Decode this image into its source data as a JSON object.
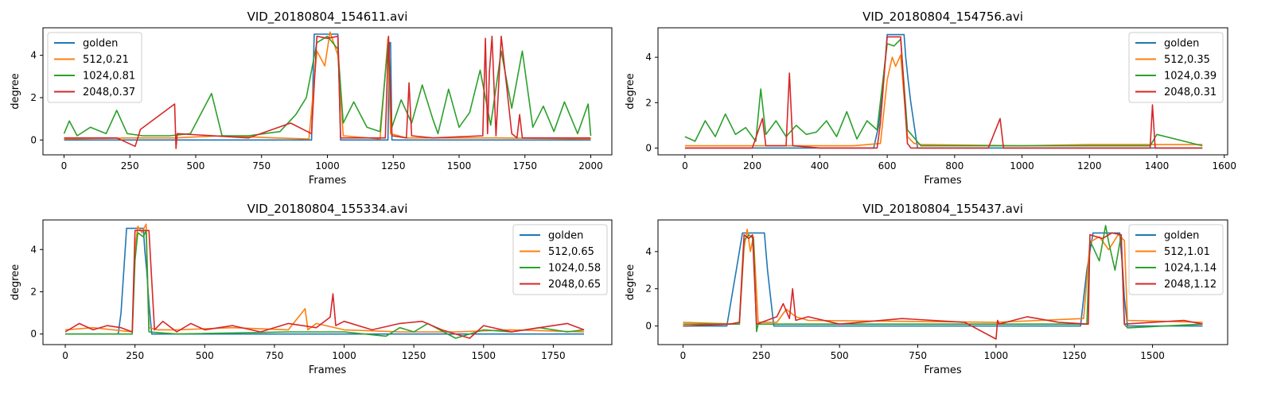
{
  "figure": {
    "colors": {
      "golden": "#1f77b4",
      "512": "#ff7f0e",
      "1024": "#2ca02c",
      "2048": "#d62728"
    }
  },
  "chart_data": [
    {
      "type": "line",
      "title": "VID_20180804_154611.avi",
      "xlabel": "Frames",
      "ylabel": "degree",
      "xlim": [
        -80,
        2080
      ],
      "ylim": [
        -0.7,
        5.3
      ],
      "xticks": [
        0,
        250,
        500,
        750,
        1000,
        1250,
        1500,
        1750,
        2000
      ],
      "yticks": [
        0,
        2,
        4
      ],
      "legend_position": "top-left",
      "series": [
        {
          "name": "golden",
          "color": "#1f77b4",
          "x": [
            0,
            940,
            950,
            1040,
            1050,
            1230,
            1235,
            1240,
            1245,
            2000
          ],
          "y": [
            0,
            0,
            5,
            5,
            0,
            0,
            4.6,
            4.6,
            0,
            0
          ]
        },
        {
          "name": "512,0.21",
          "color": "#ff7f0e",
          "x": [
            0,
            250,
            420,
            600,
            800,
            930,
            960,
            990,
            1010,
            1040,
            1060,
            1200,
            1230,
            1240,
            1300,
            1600,
            1650,
            2000
          ],
          "y": [
            0.05,
            0.1,
            0.1,
            0.2,
            0.1,
            0.05,
            4.2,
            3.5,
            5.1,
            4.0,
            0.2,
            0.05,
            4.8,
            0.3,
            0.1,
            0.1,
            0.1,
            0.05
          ]
        },
        {
          "name": "1024,0.81",
          "color": "#2ca02c",
          "x": [
            0,
            20,
            50,
            100,
            160,
            200,
            240,
            300,
            400,
            480,
            560,
            600,
            700,
            820,
            880,
            920,
            960,
            1000,
            1040,
            1060,
            1100,
            1150,
            1200,
            1230,
            1245,
            1280,
            1320,
            1360,
            1400,
            1420,
            1460,
            1500,
            1540,
            1580,
            1620,
            1660,
            1700,
            1740,
            1780,
            1820,
            1860,
            1900,
            1950,
            1990,
            2000
          ],
          "y": [
            0.3,
            0.9,
            0.2,
            0.6,
            0.3,
            1.4,
            0.3,
            0.2,
            0.2,
            0.3,
            2.2,
            0.2,
            0.2,
            0.4,
            1.2,
            2.0,
            4.6,
            4.9,
            4.3,
            0.8,
            1.8,
            0.6,
            0.4,
            4.5,
            0.6,
            1.9,
            0.8,
            2.6,
            1.0,
            0.3,
            2.4,
            0.6,
            1.3,
            3.3,
            0.7,
            4.2,
            1.5,
            4.2,
            0.6,
            1.6,
            0.4,
            1.8,
            0.3,
            1.7,
            0.2
          ]
        },
        {
          "name": "2048,0.37",
          "color": "#d62728",
          "x": [
            0,
            200,
            270,
            290,
            420,
            425,
            430,
            700,
            860,
            940,
            960,
            1000,
            1040,
            1050,
            1220,
            1232,
            1245,
            1300,
            1310,
            1320,
            1400,
            1590,
            1600,
            1608,
            1615,
            1625,
            1640,
            1660,
            1700,
            1720,
            1730,
            1740,
            2000
          ],
          "y": [
            0.1,
            0.1,
            -0.3,
            0.5,
            1.7,
            -0.4,
            0.3,
            0.1,
            0.8,
            0.3,
            4.9,
            4.8,
            4.9,
            0.1,
            0.1,
            4.9,
            0.2,
            0.1,
            2.7,
            0.2,
            0.1,
            0.2,
            4.8,
            0.3,
            3.2,
            4.9,
            0.2,
            4.9,
            0.3,
            0.1,
            1.2,
            0.1,
            0.1
          ]
        }
      ]
    },
    {
      "type": "line",
      "title": "VID_20180804_154756.avi",
      "xlabel": "Frames",
      "ylabel": "degree",
      "xlim": [
        -80,
        1610
      ],
      "ylim": [
        -0.3,
        5.3
      ],
      "xticks": [
        0,
        200,
        400,
        600,
        800,
        1000,
        1200,
        1400,
        1600
      ],
      "yticks": [
        0,
        2,
        4
      ],
      "legend_position": "top-right",
      "series": [
        {
          "name": "golden",
          "color": "#1f77b4",
          "x": [
            0,
            560,
            575,
            585,
            595,
            600,
            650,
            655,
            662,
            670,
            680,
            690,
            1535
          ],
          "y": [
            0,
            0,
            1,
            2.5,
            4,
            5,
            5,
            4,
            3,
            2,
            1,
            0,
            0
          ]
        },
        {
          "name": "512,0.35",
          "color": "#ff7f0e",
          "x": [
            0,
            500,
            580,
            600,
            615,
            625,
            640,
            660,
            680,
            700,
            1000,
            1200,
            1535
          ],
          "y": [
            0.1,
            0.1,
            0.2,
            3.0,
            4.0,
            3.6,
            4.1,
            0.5,
            0.2,
            0.15,
            0.1,
            0.15,
            0.15
          ]
        },
        {
          "name": "1024,0.39",
          "color": "#2ca02c",
          "x": [
            0,
            30,
            60,
            90,
            120,
            150,
            180,
            210,
            225,
            240,
            270,
            300,
            330,
            360,
            390,
            420,
            450,
            480,
            510,
            540,
            570,
            600,
            620,
            640,
            660,
            700,
            1000,
            1380,
            1400,
            1535
          ],
          "y": [
            0.5,
            0.3,
            1.2,
            0.5,
            1.5,
            0.6,
            0.9,
            0.3,
            2.6,
            0.6,
            1.2,
            0.5,
            1.0,
            0.6,
            0.7,
            1.2,
            0.5,
            1.6,
            0.4,
            1.2,
            0.8,
            4.6,
            4.5,
            4.8,
            0.8,
            0.1,
            0.1,
            0.1,
            0.6,
            0.1
          ]
        },
        {
          "name": "2048,0.31",
          "color": "#d62728",
          "x": [
            0,
            100,
            200,
            230,
            240,
            300,
            310,
            320,
            400,
            570,
            580,
            600,
            640,
            660,
            670,
            900,
            935,
            945,
            1000,
            1380,
            1387,
            1395,
            1535
          ],
          "y": [
            0,
            0,
            0,
            1.3,
            0.1,
            0.1,
            3.3,
            0.1,
            0,
            0,
            1.1,
            4.9,
            4.9,
            0.2,
            0,
            0,
            1.3,
            0,
            0,
            0,
            1.9,
            0,
            0
          ]
        }
      ]
    },
    {
      "type": "line",
      "title": "VID_20180804_155334.avi",
      "xlabel": "Frames",
      "ylabel": "degree",
      "xlim": [
        -80,
        1960
      ],
      "ylim": [
        -0.5,
        5.4
      ],
      "xticks": [
        0,
        250,
        500,
        750,
        1000,
        1250,
        1500,
        1750
      ],
      "yticks": [
        0,
        2,
        4
      ],
      "legend_position": "top-right",
      "series": [
        {
          "name": "golden",
          "color": "#1f77b4",
          "x": [
            0,
            190,
            200,
            210,
            220,
            280,
            285,
            292,
            300,
            310,
            1860
          ],
          "y": [
            0,
            0,
            1,
            3,
            5,
            5,
            4,
            3,
            1.5,
            0,
            0
          ]
        },
        {
          "name": "512,0.65",
          "color": "#ff7f0e",
          "x": [
            0,
            100,
            240,
            250,
            260,
            275,
            290,
            300,
            330,
            400,
            600,
            800,
            860,
            870,
            900,
            1000,
            1200,
            1400,
            1600,
            1860
          ],
          "y": [
            0.2,
            0.3,
            0.1,
            4.0,
            5.1,
            4.8,
            5.2,
            0.3,
            0.2,
            0.2,
            0.3,
            0.2,
            1.2,
            0.2,
            0.5,
            0.2,
            0.1,
            0.1,
            0.2,
            0.1
          ]
        },
        {
          "name": "1024,0.58",
          "color": "#2ca02c",
          "x": [
            0,
            240,
            250,
            260,
            280,
            290,
            300,
            400,
            800,
            1000,
            1150,
            1200,
            1250,
            1300,
            1400,
            1500,
            1600,
            1700,
            1800,
            1860
          ],
          "y": [
            0,
            0,
            3.5,
            4.8,
            4.6,
            4.9,
            0.1,
            0,
            0.1,
            0.1,
            -0.1,
            0.3,
            0.1,
            0.5,
            -0.2,
            0.2,
            0.1,
            0.3,
            0.1,
            0.2
          ]
        },
        {
          "name": "2048,0.65",
          "color": "#d62728",
          "x": [
            0,
            50,
            100,
            150,
            200,
            240,
            250,
            300,
            320,
            350,
            400,
            450,
            500,
            600,
            700,
            800,
            900,
            950,
            960,
            970,
            1000,
            1100,
            1200,
            1280,
            1350,
            1450,
            1500,
            1600,
            1700,
            1800,
            1860
          ],
          "y": [
            0.1,
            0.5,
            0.2,
            0.4,
            0.3,
            0.1,
            4.9,
            4.9,
            0.2,
            0.6,
            0.1,
            0.5,
            0.2,
            0.4,
            0.1,
            0.5,
            0.3,
            0.8,
            1.9,
            0.4,
            0.6,
            0.2,
            0.5,
            0.6,
            0.2,
            -0.2,
            0.4,
            0.1,
            0.3,
            0.5,
            0.2
          ]
        }
      ]
    },
    {
      "type": "line",
      "title": "VID_20180804_155437.avi",
      "xlabel": "Frames",
      "ylabel": "degree",
      "xlim": [
        -80,
        1740
      ],
      "ylim": [
        -1.0,
        5.7
      ],
      "xticks": [
        0,
        250,
        500,
        750,
        1000,
        1250,
        1500
      ],
      "yticks": [
        0,
        2,
        4
      ],
      "legend_position": "top-right",
      "series": [
        {
          "name": "golden",
          "color": "#1f77b4",
          "x": [
            0,
            140,
            150,
            160,
            170,
            180,
            190,
            260,
            265,
            270,
            280,
            290,
            1270,
            1280,
            1290,
            1300,
            1310,
            1395,
            1400,
            1405,
            1410,
            1420,
            1660
          ],
          "y": [
            0,
            0,
            1,
            2,
            3,
            4,
            5,
            5,
            4,
            3,
            1.5,
            0,
            0,
            1.5,
            3,
            4,
            5,
            5,
            4,
            3,
            1.5,
            0,
            0
          ]
        },
        {
          "name": "512,1.01",
          "color": "#ff7f0e",
          "x": [
            0,
            180,
            195,
            205,
            215,
            225,
            240,
            300,
            330,
            360,
            400,
            1000,
            1280,
            1300,
            1330,
            1360,
            1390,
            1410,
            1420,
            1660
          ],
          "y": [
            0.2,
            0.1,
            4.2,
            5.2,
            4.0,
            4.8,
            0.2,
            0.2,
            0.9,
            0.5,
            0.3,
            0.2,
            0.4,
            4.5,
            4.8,
            4.1,
            4.9,
            4.6,
            0.3,
            0.2
          ]
        },
        {
          "name": "1024,1.14",
          "color": "#2ca02c",
          "x": [
            0,
            180,
            195,
            210,
            225,
            235,
            240,
            300,
            600,
            1000,
            1290,
            1300,
            1330,
            1350,
            1360,
            1380,
            1400,
            1410,
            1420,
            1660
          ],
          "y": [
            0.1,
            0.1,
            4.6,
            4.9,
            4.7,
            -0.3,
            0.1,
            0.1,
            0.1,
            0.1,
            0.1,
            4.6,
            3.5,
            5.4,
            4.5,
            3.0,
            4.9,
            0.1,
            -0.1,
            0.1
          ]
        },
        {
          "name": "2048,1.12",
          "color": "#d62728",
          "x": [
            0,
            150,
            180,
            195,
            210,
            222,
            235,
            300,
            320,
            340,
            350,
            360,
            400,
            500,
            700,
            900,
            1000,
            1005,
            1010,
            1100,
            1200,
            1295,
            1300,
            1340,
            1370,
            1400,
            1410,
            1500,
            1600,
            1660
          ],
          "y": [
            0,
            0.1,
            0.2,
            4.9,
            4.7,
            4.9,
            0.1,
            0.5,
            1.2,
            0.4,
            2.0,
            0.3,
            0.5,
            0.1,
            0.4,
            0.2,
            -0.7,
            0.3,
            0.1,
            0.5,
            0.2,
            0.1,
            4.9,
            4.7,
            5.0,
            4.9,
            0.1,
            0.2,
            0.3,
            0.1
          ]
        }
      ]
    }
  ]
}
